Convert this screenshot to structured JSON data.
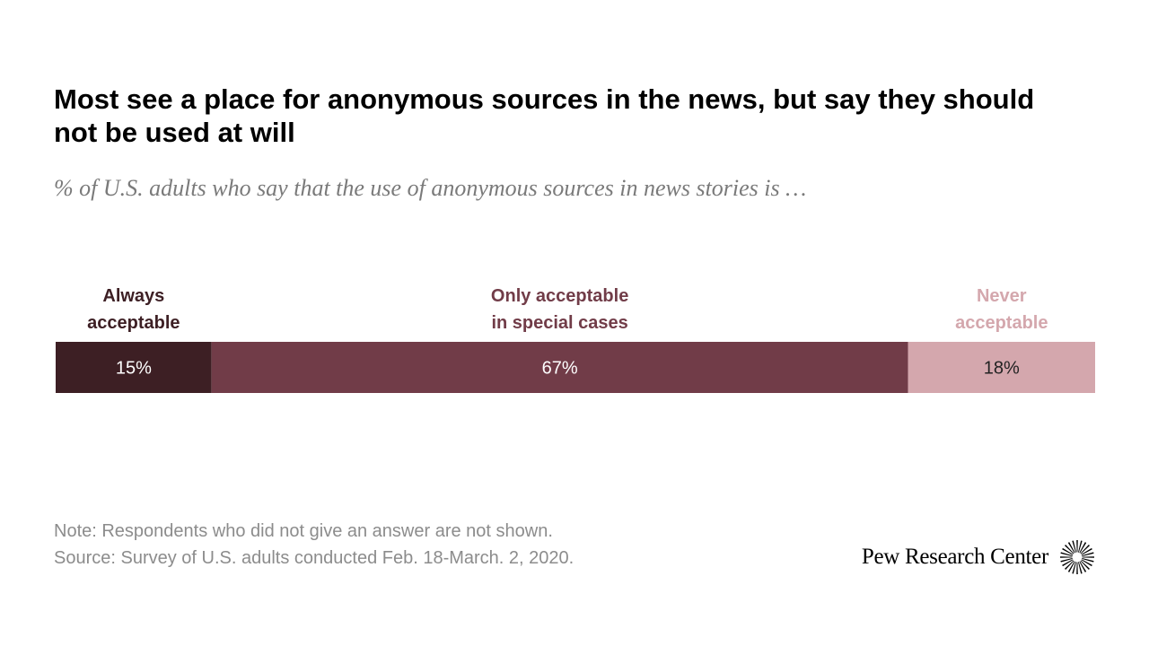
{
  "title": "Most see a place for anonymous sources in the news, but say they should not be used at will",
  "subtitle": "% of U.S. adults who say that the use of anonymous sources in news stories is …",
  "chart_data": {
    "type": "bar",
    "orientation": "horizontal-stacked",
    "categories": [
      "U.S. adults"
    ],
    "series": [
      {
        "name": "Always acceptable",
        "label_lines": [
          "Always",
          "acceptable"
        ],
        "values": [
          15
        ],
        "display": "15%",
        "color": "#3d1f24",
        "label_color": "#3d1f24",
        "text_color": "#ffffff"
      },
      {
        "name": "Only acceptable in special cases",
        "label_lines": [
          "Only acceptable",
          "in special cases"
        ],
        "values": [
          67
        ],
        "display": "67%",
        "color": "#713c48",
        "label_color": "#713c48",
        "text_color": "#ffffff"
      },
      {
        "name": "Never acceptable",
        "label_lines": [
          "Never",
          "acceptable"
        ],
        "values": [
          18
        ],
        "display": "18%",
        "color": "#d4a7ad",
        "label_color": "#d4a7ad",
        "text_color": "#222222"
      }
    ],
    "xlim": [
      0,
      100
    ],
    "grid": false,
    "legend": "above-segments"
  },
  "footer": {
    "note": "Note: Respondents who did not give an answer are not shown.",
    "source": "Source: Survey of U.S. adults conducted Feb. 18-March. 2, 2020."
  },
  "logo": {
    "text": "Pew Research Center",
    "icon": "pew-sunburst-icon"
  }
}
